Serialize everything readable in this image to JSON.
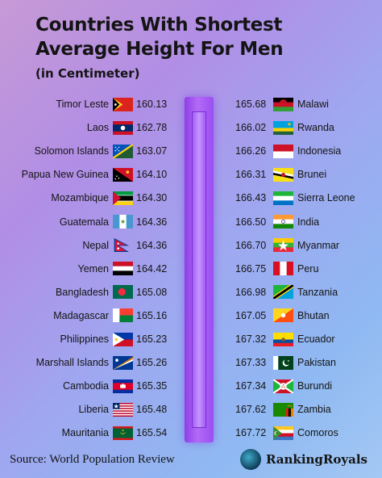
{
  "header": {
    "title_line1": "Countries With Shortest",
    "title_line2": "Average Height For Men",
    "subtitle": "(in Centimeter)"
  },
  "footer": {
    "source": "Source: World Population Review",
    "brand": "RankingRoyals",
    "brand_icon": "globe-logo-icon"
  },
  "chart_data": {
    "type": "table",
    "title": "Countries With Shortest Average Height For Men",
    "subtitle": "(in Centimeter)",
    "columns": [
      {
        "side": "left",
        "rows": [
          {
            "country": "Timor Leste",
            "value": "160.13",
            "flag": "timor-leste"
          },
          {
            "country": "Laos",
            "value": "162.78",
            "flag": "laos"
          },
          {
            "country": "Solomon Islands",
            "value": "163.07",
            "flag": "solomon-islands"
          },
          {
            "country": "Papua New Guinea",
            "value": "164.10",
            "flag": "papua-new-guinea"
          },
          {
            "country": "Mozambique",
            "value": "164.30",
            "flag": "mozambique"
          },
          {
            "country": "Guatemala",
            "value": "164.36",
            "flag": "guatemala"
          },
          {
            "country": "Nepal",
            "value": "164.36",
            "flag": "nepal"
          },
          {
            "country": "Yemen",
            "value": "164.42",
            "flag": "yemen"
          },
          {
            "country": "Bangladesh",
            "value": "165.08",
            "flag": "bangladesh"
          },
          {
            "country": "Madagascar",
            "value": "165.16",
            "flag": "madagascar"
          },
          {
            "country": "Philippines",
            "value": "165.23",
            "flag": "philippines"
          },
          {
            "country": "Marshall Islands",
            "value": "165.26",
            "flag": "marshall-islands"
          },
          {
            "country": "Cambodia",
            "value": "165.35",
            "flag": "cambodia"
          },
          {
            "country": "Liberia",
            "value": "165.48",
            "flag": "liberia"
          },
          {
            "country": "Mauritania",
            "value": "165.54",
            "flag": "mauritania"
          }
        ]
      },
      {
        "side": "right",
        "rows": [
          {
            "country": "Malawi",
            "value": "165.68",
            "flag": "malawi"
          },
          {
            "country": "Rwanda",
            "value": "166.02",
            "flag": "rwanda"
          },
          {
            "country": "Indonesia",
            "value": "166.26",
            "flag": "indonesia"
          },
          {
            "country": "Brunei",
            "value": "166.31",
            "flag": "brunei"
          },
          {
            "country": "Sierra Leone",
            "value": "166.43",
            "flag": "sierra-leone"
          },
          {
            "country": "India",
            "value": "166.50",
            "flag": "india"
          },
          {
            "country": "Myanmar",
            "value": "166.70",
            "flag": "myanmar"
          },
          {
            "country": "Peru",
            "value": "166.75",
            "flag": "peru"
          },
          {
            "country": "Tanzania",
            "value": "166.98",
            "flag": "tanzania"
          },
          {
            "country": "Bhutan",
            "value": "167.05",
            "flag": "bhutan"
          },
          {
            "country": "Ecuador",
            "value": "167.32",
            "flag": "ecuador"
          },
          {
            "country": "Pakistan",
            "value": "167.33",
            "flag": "pakistan"
          },
          {
            "country": "Burundi",
            "value": "167.34",
            "flag": "burundi"
          },
          {
            "country": "Zambia",
            "value": "167.62",
            "flag": "zambia"
          },
          {
            "country": "Comoros",
            "value": "167.72",
            "flag": "comoros"
          }
        ]
      }
    ]
  }
}
